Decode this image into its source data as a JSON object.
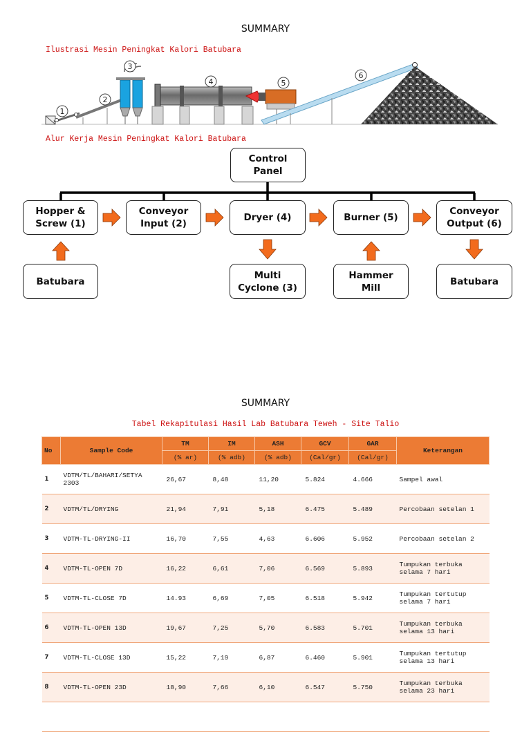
{
  "page1": {
    "heading": "SUMMARY",
    "illustration_caption": "Ilustrasi Mesin Peningkat Kalori Batubara",
    "machine_labels": [
      "1",
      "2",
      "3",
      "4",
      "5",
      "6"
    ],
    "workflow_caption": "Alur Kerja Mesin Peningkat Kalori Batubara",
    "flow": {
      "control": "Control\nPanel",
      "hopper": "Hopper &\nScrew (1)",
      "conveyor_input": "Conveyor\nInput (2)",
      "dryer": "Dryer (4)",
      "burner": "Burner (5)",
      "conveyor_output": "Conveyor\nOutput (6)",
      "batubara_in": "Batubara",
      "multi_cyclone": "Multi\nCyclone (3)",
      "hammer_mill": "Hammer\nMill",
      "batubara_out": "Batubara"
    },
    "colors": {
      "arrow": "#f26b1d",
      "caption": "#cc1111",
      "silo": "#1aa3e0",
      "burner": "#d86d25"
    }
  },
  "page2": {
    "heading": "SUMMARY",
    "table_caption": "Tabel Rekapitulasi Hasil Lab Batubara Teweh - Site Talio",
    "header": {
      "no": "No",
      "sample_code": "Sample Code",
      "tm": "TM",
      "tm_unit": "(% ar)",
      "im": "IM",
      "im_unit": "(% adb)",
      "ash": "ASH",
      "ash_unit": "(% adb)",
      "gcv": "GCV",
      "gcv_unit": "(Cal/gr)",
      "gar": "GAR",
      "gar_unit": "(Cal/gr)",
      "keterangan": "Keterangan"
    },
    "rows": [
      {
        "no": "1",
        "code": "VDTM/TL/BAHARI/SETYA 2303",
        "tm": "26,67",
        "im": "8,48",
        "ash": "11,20",
        "gcv": "5.824",
        "gar": "4.666",
        "ket": "Sampel awal"
      },
      {
        "no": "2",
        "code": "VDTM/TL/DRYING",
        "tm": "21,94",
        "im": "7,91",
        "ash": "5,18",
        "gcv": "6.475",
        "gar": "5.489",
        "ket": "Percobaan setelan 1"
      },
      {
        "no": "3",
        "code": "VDTM-TL-DRYING-II",
        "tm": "16,70",
        "im": "7,55",
        "ash": "4,63",
        "gcv": "6.606",
        "gar": "5.952",
        "ket": "Percobaan setelan 2"
      },
      {
        "no": "4",
        "code": "VDTM-TL-OPEN 7D",
        "tm": "16,22",
        "im": "6,61",
        "ash": "7,06",
        "gcv": "6.569",
        "gar": "5.893",
        "ket": "Tumpukan terbuka selama 7 hari"
      },
      {
        "no": "5",
        "code": "VDTM-TL-CLOSE 7D",
        "tm": "14.93",
        "im": "6,69",
        "ash": "7,05",
        "gcv": "6.518",
        "gar": "5.942",
        "ket": "Tumpukan tertutup selama 7 hari"
      },
      {
        "no": "6",
        "code": "VDTM-TL-OPEN 13D",
        "tm": "19,67",
        "im": "7,25",
        "ash": "5,70",
        "gcv": "6.583",
        "gar": "5.701",
        "ket": "Tumpukan terbuka selama 13 hari"
      },
      {
        "no": "7",
        "code": "VDTM-TL-CLOSE 13D",
        "tm": "15,22",
        "im": "7,19",
        "ash": "6,87",
        "gcv": "6.460",
        "gar": "5.901",
        "ket": "Tumpukan tertutup selama 13 hari"
      },
      {
        "no": "8",
        "code": "VDTM-TL-OPEN 23D",
        "tm": "18,90",
        "im": "7,66",
        "ash": "6,10",
        "gcv": "6.547",
        "gar": "5.750",
        "ket": "Tumpukan terbuka selama 23 hari"
      }
    ]
  }
}
